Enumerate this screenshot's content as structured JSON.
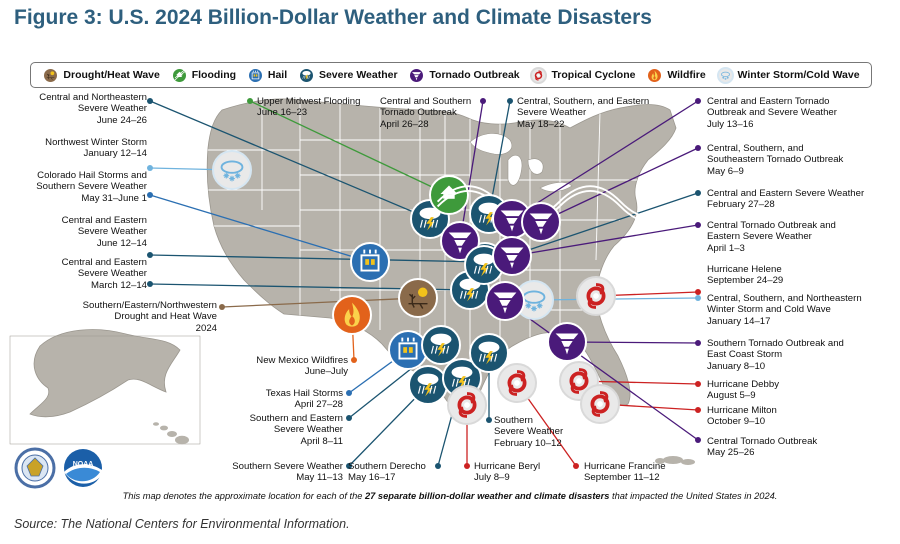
{
  "title": "Figure 3: U.S. 2024 Billion-Dollar Weather and Climate Disasters",
  "legend": [
    {
      "type": "drought",
      "label": "Drought/Heat Wave",
      "color": "#8a6a4a"
    },
    {
      "type": "flood",
      "label": "Flooding",
      "color": "#3e9a3b"
    },
    {
      "type": "hail",
      "label": "Hail",
      "color": "#2b6fb2"
    },
    {
      "type": "severe",
      "label": "Severe Weather",
      "color": "#1b5470"
    },
    {
      "type": "tornado",
      "label": "Tornado Outbreak",
      "color": "#4a1a7a"
    },
    {
      "type": "tropical",
      "label": "Tropical Cyclone",
      "color": "#cc2222"
    },
    {
      "type": "wildfire",
      "label": "Wildfire",
      "color": "#e2621b"
    },
    {
      "type": "winter",
      "label": "Winter Storm/Cold Wave",
      "color": "#6fb3de"
    }
  ],
  "events_left": [
    {
      "label": "Central and Northeastern\nSevere Weather\nJune 24–26",
      "type": "severe"
    },
    {
      "label": "Northwest Winter Storm\nJanuary 12–14",
      "type": "winter"
    },
    {
      "label": "Colorado Hail Storms and\nSouthern Severe Weather\nMay 31–June 1",
      "type": "hail"
    },
    {
      "label": "Central and Eastern\nSevere Weather\nJune 12–14",
      "type": "severe"
    },
    {
      "label": "Central and Eastern\nSevere Weather\nMarch 12–14",
      "type": "severe"
    },
    {
      "label": "Southern/Eastern/Northwestern\nDrought and Heat Wave\n2024",
      "type": "drought"
    }
  ],
  "events_top": [
    {
      "label": "Upper Midwest Flooding\nJune 16–23",
      "type": "flood"
    },
    {
      "label": "Central and Southern\nTornado Outbreak\nApril 26–28",
      "type": "tornado"
    },
    {
      "label": "Central, Southern, and Eastern\nSevere Weather\nMay 18–22",
      "type": "severe"
    }
  ],
  "events_right": [
    {
      "label": "Central and Eastern Tornado\nOutbreak and Severe Weather\nJuly 13–16",
      "type": "tornado"
    },
    {
      "label": "Central, Southern, and\nSoutheastern Tornado Outbreak\nMay 6–9",
      "type": "tornado"
    },
    {
      "label": "Central and Eastern Severe Weather\nFebruary 27–28",
      "type": "severe"
    },
    {
      "label": "Central Tornado Outbreak and\nEastern Severe Weather\nApril 1–3",
      "type": "tornado"
    },
    {
      "label": "Hurricane Helene\nSeptember 24–29",
      "type": "tropical"
    },
    {
      "label": "Central, Southern, and Northeastern\nWinter Storm and Cold Wave\nJanuary 14–17",
      "type": "winter"
    },
    {
      "label": "Southern Tornado Outbreak and\nEast Coast Storm\nJanuary 8–10",
      "type": "tornado"
    },
    {
      "label": "Hurricane Debby\nAugust 5–9",
      "type": "tropical"
    },
    {
      "label": "Hurricane Milton\nOctober 9–10",
      "type": "tropical"
    },
    {
      "label": "Central Tornado Outbreak\nMay 25–26",
      "type": "tornado"
    }
  ],
  "events_bottom": [
    {
      "label": "New Mexico Wildfires\nJune–July",
      "type": "wildfire"
    },
    {
      "label": "Texas Hail Storms\nApril 27–28",
      "type": "hail"
    },
    {
      "label": "Southern and Eastern\nSevere Weather\nApril 8–11",
      "type": "severe"
    },
    {
      "label": "Southern Severe Weather\nMay 11–13",
      "type": "severe"
    },
    {
      "label": "Southern Derecho\nMay 16–17",
      "type": "severe"
    },
    {
      "label": "Southern\nSevere Weather\nFebruary 10–12",
      "type": "severe"
    },
    {
      "label": "Hurricane Beryl\nJuly 8–9",
      "type": "tropical"
    },
    {
      "label": "Hurricane Francine\nSeptember 11–12",
      "type": "tropical"
    }
  ],
  "footnote_prefix": "This map denotes the approximate location for each of the ",
  "footnote_bold": "27 separate billion-dollar weather and climate disasters",
  "footnote_suffix": " that impacted the United States in 2024.",
  "source": "Source: The National Centers for Environmental Information.",
  "logos": [
    {
      "name": "Department of Commerce seal",
      "text": ""
    },
    {
      "name": "NOAA logo",
      "text": "NOAA"
    }
  ],
  "colors": {
    "title": "#2e5f7e",
    "land": "#b7b3ab",
    "state_lines": "#ffffff",
    "lake": "#ffffff"
  }
}
